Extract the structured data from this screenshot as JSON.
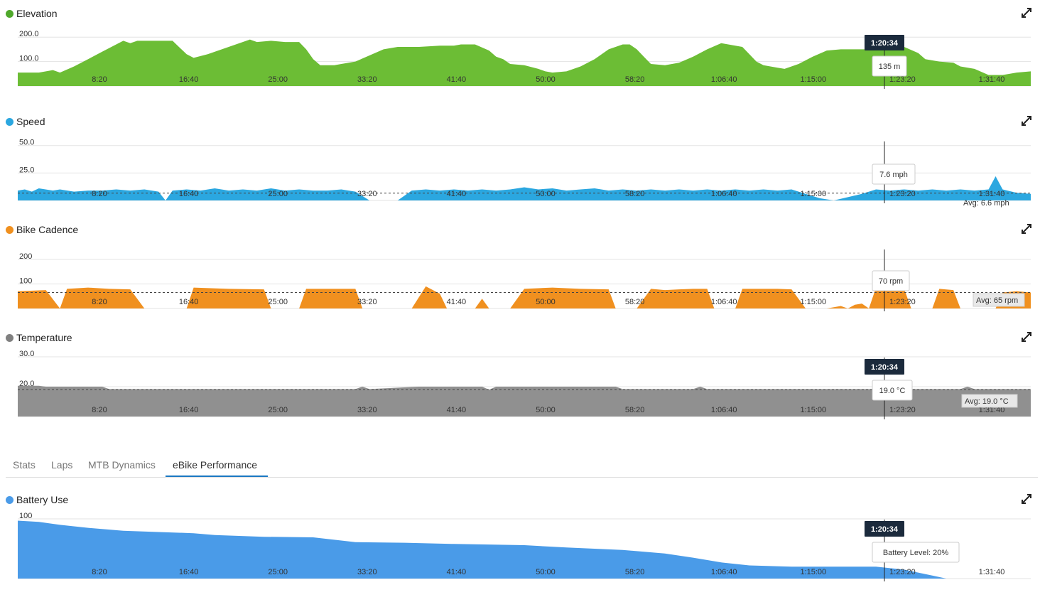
{
  "xticks": [
    "8:20",
    "16:40",
    "25:00",
    "33:20",
    "41:40",
    "50:00",
    "58:20",
    "1:06:40",
    "1:15:00",
    "1:23:20",
    "1:31:40"
  ],
  "cursor_time": "1:20:34",
  "panels": [
    {
      "id": "elevation",
      "title": "Elevation",
      "color": "#6cbd35",
      "dot": "#4fa82b",
      "yticks": [
        "200.0",
        "100.0",
        "0"
      ],
      "ymax": 250,
      "tooltip": "135 m",
      "show_time": true,
      "avg": "",
      "series": [
        [
          0,
          55
        ],
        [
          3,
          55
        ],
        [
          4,
          60
        ],
        [
          5,
          65
        ],
        [
          6,
          55
        ],
        [
          8,
          80
        ],
        [
          10,
          110
        ],
        [
          12,
          140
        ],
        [
          14,
          170
        ],
        [
          15,
          185
        ],
        [
          16,
          175
        ],
        [
          17,
          185
        ],
        [
          22,
          185
        ],
        [
          24,
          130
        ],
        [
          25,
          115
        ],
        [
          27,
          130
        ],
        [
          29,
          150
        ],
        [
          31,
          170
        ],
        [
          33,
          190
        ],
        [
          34,
          180
        ],
        [
          36,
          185
        ],
        [
          38,
          180
        ],
        [
          40,
          180
        ],
        [
          41,
          150
        ],
        [
          42,
          110
        ],
        [
          43,
          85
        ],
        [
          45,
          85
        ],
        [
          46,
          90
        ],
        [
          48,
          100
        ],
        [
          50,
          125
        ],
        [
          52,
          150
        ],
        [
          54,
          160
        ],
        [
          57,
          160
        ],
        [
          60,
          165
        ],
        [
          62,
          165
        ],
        [
          63,
          170
        ],
        [
          65,
          170
        ],
        [
          67,
          145
        ],
        [
          68,
          120
        ],
        [
          69,
          110
        ],
        [
          70,
          90
        ],
        [
          72,
          85
        ],
        [
          74,
          70
        ],
        [
          75,
          60
        ],
        [
          76,
          55
        ],
        [
          78,
          60
        ],
        [
          80,
          80
        ],
        [
          82,
          110
        ],
        [
          84,
          150
        ],
        [
          86,
          170
        ],
        [
          87,
          170
        ],
        [
          88,
          150
        ],
        [
          89,
          120
        ],
        [
          90,
          90
        ],
        [
          92,
          85
        ],
        [
          94,
          95
        ],
        [
          96,
          120
        ],
        [
          98,
          150
        ],
        [
          100,
          175
        ],
        [
          102,
          165
        ],
        [
          103,
          160
        ],
        [
          104,
          130
        ],
        [
          105,
          100
        ],
        [
          106,
          85
        ],
        [
          108,
          75
        ],
        [
          109,
          70
        ],
        [
          111,
          90
        ],
        [
          113,
          120
        ],
        [
          115,
          145
        ],
        [
          117,
          150
        ],
        [
          120,
          150
        ],
        [
          121,
          150
        ],
        [
          122,
          160
        ],
        [
          124,
          170
        ],
        [
          126,
          160
        ],
        [
          128,
          135
        ],
        [
          129,
          110
        ],
        [
          131,
          100
        ],
        [
          133,
          95
        ],
        [
          134,
          80
        ],
        [
          136,
          70
        ],
        [
          138,
          45
        ],
        [
          140,
          45
        ],
        [
          142,
          55
        ],
        [
          144,
          60
        ]
      ]
    },
    {
      "id": "speed",
      "title": "Speed",
      "color": "#2ba7e0",
      "dot": "#2ba7e0",
      "yticks": [
        "50.0",
        "25.0",
        "0.0"
      ],
      "ymax": 55,
      "tooltip": "7.6 mph",
      "show_time": false,
      "avg": "Avg: 6.6 mph",
      "avg_value": 6.6,
      "series": [
        [
          0,
          9
        ],
        [
          1,
          10
        ],
        [
          2,
          8
        ],
        [
          3,
          11
        ],
        [
          5,
          9
        ],
        [
          6,
          10
        ],
        [
          8,
          8
        ],
        [
          10,
          9
        ],
        [
          12,
          9
        ],
        [
          14,
          10
        ],
        [
          16,
          9
        ],
        [
          18,
          10
        ],
        [
          20,
          8
        ],
        [
          21,
          0
        ],
        [
          22,
          9
        ],
        [
          24,
          10
        ],
        [
          26,
          9
        ],
        [
          28,
          11
        ],
        [
          30,
          9
        ],
        [
          32,
          10
        ],
        [
          34,
          9
        ],
        [
          36,
          11
        ],
        [
          38,
          9
        ],
        [
          40,
          10
        ],
        [
          42,
          9
        ],
        [
          44,
          9
        ],
        [
          46,
          10
        ],
        [
          48,
          8
        ],
        [
          50,
          0
        ],
        [
          54,
          0
        ],
        [
          56,
          9
        ],
        [
          58,
          10
        ],
        [
          60,
          9
        ],
        [
          62,
          10
        ],
        [
          64,
          9
        ],
        [
          66,
          10
        ],
        [
          68,
          9
        ],
        [
          70,
          10
        ],
        [
          72,
          12
        ],
        [
          74,
          10
        ],
        [
          76,
          11
        ],
        [
          78,
          9
        ],
        [
          80,
          10
        ],
        [
          82,
          11
        ],
        [
          84,
          9
        ],
        [
          86,
          10
        ],
        [
          88,
          9
        ],
        [
          90,
          10
        ],
        [
          92,
          9
        ],
        [
          94,
          10
        ],
        [
          96,
          9
        ],
        [
          98,
          10
        ],
        [
          100,
          9
        ],
        [
          102,
          10
        ],
        [
          104,
          9
        ],
        [
          106,
          10
        ],
        [
          108,
          9
        ],
        [
          110,
          10
        ],
        [
          112,
          6
        ],
        [
          114,
          2
        ],
        [
          116,
          0
        ],
        [
          118,
          3
        ],
        [
          120,
          6
        ],
        [
          122,
          10
        ],
        [
          124,
          9
        ],
        [
          126,
          10
        ],
        [
          128,
          9
        ],
        [
          130,
          10
        ],
        [
          132,
          9
        ],
        [
          134,
          10
        ],
        [
          136,
          9
        ],
        [
          138,
          10
        ],
        [
          139,
          22
        ],
        [
          140,
          10
        ],
        [
          142,
          7
        ],
        [
          144,
          6
        ]
      ]
    },
    {
      "id": "cadence",
      "title": "Bike Cadence",
      "color": "#f0901f",
      "dot": "#f0901f",
      "yticks": [
        "200",
        "100",
        "0"
      ],
      "ymax": 220,
      "tooltip": "70 rpm",
      "show_time": false,
      "avg": "Avg: 65 rpm",
      "avg_value": 65,
      "series": [
        [
          0,
          70
        ],
        [
          4,
          75
        ],
        [
          6,
          0
        ],
        [
          7,
          80
        ],
        [
          10,
          85
        ],
        [
          13,
          80
        ],
        [
          16,
          78
        ],
        [
          18,
          0
        ],
        [
          24,
          0
        ],
        [
          25,
          85
        ],
        [
          30,
          80
        ],
        [
          35,
          78
        ],
        [
          36,
          0
        ],
        [
          40,
          0
        ],
        [
          41,
          80
        ],
        [
          45,
          80
        ],
        [
          48,
          80
        ],
        [
          49,
          0
        ],
        [
          56,
          0
        ],
        [
          58,
          90
        ],
        [
          60,
          60
        ],
        [
          61,
          0
        ],
        [
          65,
          0
        ],
        [
          66,
          40
        ],
        [
          67,
          0
        ],
        [
          70,
          0
        ],
        [
          72,
          80
        ],
        [
          76,
          85
        ],
        [
          80,
          80
        ],
        [
          84,
          78
        ],
        [
          85,
          0
        ],
        [
          88,
          0
        ],
        [
          90,
          80
        ],
        [
          92,
          75
        ],
        [
          94,
          78
        ],
        [
          96,
          80
        ],
        [
          98,
          80
        ],
        [
          99,
          0
        ],
        [
          102,
          0
        ],
        [
          103,
          80
        ],
        [
          108,
          80
        ],
        [
          110,
          78
        ],
        [
          112,
          0
        ],
        [
          115,
          0
        ],
        [
          117,
          10
        ],
        [
          118,
          0
        ],
        [
          119,
          15
        ],
        [
          120,
          20
        ],
        [
          121,
          0
        ],
        [
          122,
          85
        ],
        [
          124,
          75
        ],
        [
          126,
          80
        ],
        [
          127,
          0
        ],
        [
          130,
          0
        ],
        [
          131,
          80
        ],
        [
          133,
          75
        ],
        [
          134,
          0
        ],
        [
          139,
          0
        ],
        [
          140,
          65
        ],
        [
          142,
          70
        ],
        [
          144,
          65
        ]
      ]
    },
    {
      "id": "temperature",
      "title": "Temperature",
      "color": "#909090",
      "dot": "#808080",
      "yticks": [
        "30.0",
        "20.0",
        "10.0"
      ],
      "ymax": 30,
      "ymin": 10,
      "tooltip": "19.0 °C",
      "show_time": true,
      "avg": "Avg: 19.0 °C",
      "avg_value": 19.0,
      "series": [
        [
          0,
          20.3
        ],
        [
          3,
          20.3
        ],
        [
          4,
          20
        ],
        [
          12,
          20
        ],
        [
          13,
          19.2
        ],
        [
          48,
          19.2
        ],
        [
          49,
          20
        ],
        [
          50,
          19.2
        ],
        [
          57,
          20
        ],
        [
          66,
          20
        ],
        [
          67,
          19
        ],
        [
          68,
          20
        ],
        [
          85,
          20
        ],
        [
          86,
          19.2
        ],
        [
          96,
          19.2
        ],
        [
          97,
          20
        ],
        [
          98,
          19.2
        ],
        [
          134,
          19.2
        ],
        [
          135,
          20
        ],
        [
          136,
          19.2
        ],
        [
          144,
          19.2
        ]
      ]
    }
  ],
  "tabs": [
    {
      "label": "Stats"
    },
    {
      "label": "Laps"
    },
    {
      "label": "MTB Dynamics"
    },
    {
      "label": "eBike Performance"
    }
  ],
  "battery": {
    "title": "Battery Use",
    "color": "#4a9be8",
    "dot": "#4a9be8",
    "yticks": [
      "100",
      "0"
    ],
    "ymax": 100,
    "tooltip": "Battery Level: 20%",
    "show_time": true,
    "series": [
      [
        0,
        97
      ],
      [
        3,
        95
      ],
      [
        6,
        90
      ],
      [
        10,
        85
      ],
      [
        15,
        80
      ],
      [
        20,
        78
      ],
      [
        25,
        76
      ],
      [
        28,
        73
      ],
      [
        35,
        70
      ],
      [
        42,
        69
      ],
      [
        48,
        61
      ],
      [
        55,
        60
      ],
      [
        62,
        58
      ],
      [
        72,
        56
      ],
      [
        78,
        52
      ],
      [
        86,
        48
      ],
      [
        92,
        42
      ],
      [
        96,
        35
      ],
      [
        100,
        27
      ],
      [
        104,
        22
      ],
      [
        110,
        20
      ],
      [
        122,
        20
      ],
      [
        126,
        15
      ],
      [
        128,
        10
      ],
      [
        130,
        5
      ],
      [
        132,
        0
      ],
      [
        134,
        0
      ]
    ]
  }
}
